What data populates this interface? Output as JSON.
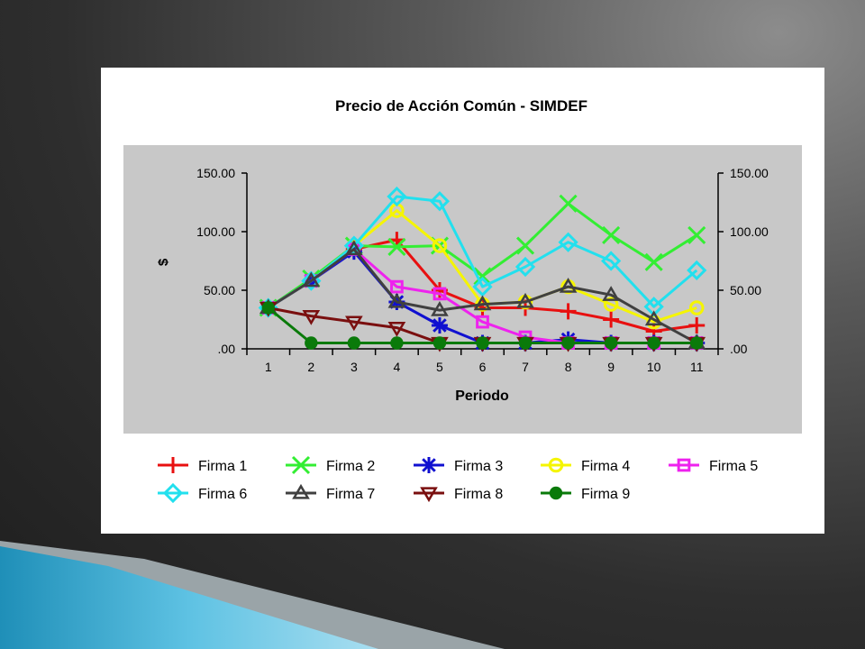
{
  "chart_data": {
    "type": "line",
    "title": "Precio de Acción Común - SIMDEF",
    "xlabel": "Periodo",
    "ylabel": "$",
    "categories": [
      "1",
      "2",
      "3",
      "4",
      "5",
      "6",
      "7",
      "8",
      "9",
      "10",
      "11"
    ],
    "y_ticks": [
      ".00",
      "50.00",
      "100.00",
      "150.00"
    ],
    "ylim": [
      0,
      150
    ],
    "grid": false,
    "legend_position": "bottom",
    "series": [
      {
        "name": "Firma 1",
        "color": "#e81010",
        "marker": "plus",
        "values": [
          35,
          58,
          85,
          93,
          50,
          35,
          35,
          32,
          25,
          15,
          20
        ]
      },
      {
        "name": "Firma 2",
        "color": "#33ee33",
        "marker": "x",
        "values": [
          35,
          60,
          88,
          87,
          88,
          62,
          88,
          124,
          97,
          74,
          97
        ]
      },
      {
        "name": "Firma 3",
        "color": "#1010d0",
        "marker": "star",
        "values": [
          35,
          58,
          83,
          40,
          20,
          5,
          5,
          8,
          5,
          5,
          5
        ]
      },
      {
        "name": "Firma 4",
        "color": "#f5f500",
        "marker": "circle-open",
        "values": [
          35,
          58,
          88,
          118,
          88,
          38,
          40,
          53,
          38,
          23,
          35
        ]
      },
      {
        "name": "Firma 5",
        "color": "#ee22ee",
        "marker": "square-open",
        "values": [
          35,
          58,
          85,
          53,
          47,
          23,
          10,
          5,
          5,
          5,
          5
        ]
      },
      {
        "name": "Firma 6",
        "color": "#22e0ee",
        "marker": "diamond-open",
        "values": [
          35,
          58,
          88,
          130,
          126,
          53,
          70,
          91,
          75,
          36,
          67
        ]
      },
      {
        "name": "Firma 7",
        "color": "#404040",
        "marker": "triangle-open",
        "values": [
          35,
          58,
          85,
          40,
          33,
          38,
          40,
          53,
          46,
          25,
          5
        ]
      },
      {
        "name": "Firma 8",
        "color": "#7a0f0f",
        "marker": "triangle-down-open",
        "values": [
          35,
          28,
          23,
          18,
          5,
          5,
          5,
          5,
          5,
          5,
          5
        ]
      },
      {
        "name": "Firma 9",
        "color": "#0a7a0a",
        "marker": "circle-filled",
        "values": [
          35,
          5,
          5,
          5,
          5,
          5,
          5,
          5,
          5,
          5,
          5
        ]
      }
    ]
  }
}
